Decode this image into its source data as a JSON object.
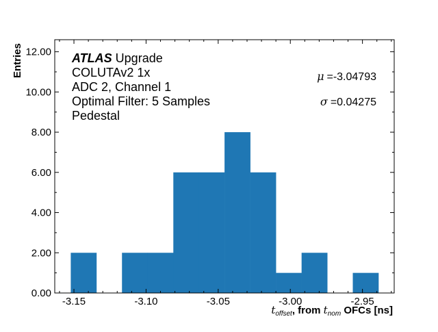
{
  "chart_data": {
    "type": "bar",
    "subtype": "histogram",
    "bin_edges": [
      -3.1522,
      -3.1344,
      -3.1167,
      -3.0989,
      -3.0811,
      -3.0633,
      -3.0456,
      -3.0278,
      -3.01,
      -2.9922,
      -2.9744,
      -2.9567,
      -2.9389
    ],
    "values": [
      2,
      0,
      2,
      2,
      6,
      6,
      8,
      6,
      1,
      2,
      0,
      1
    ],
    "xlim": [
      -3.1633,
      -2.928
    ],
    "ylim": [
      0,
      12.6
    ],
    "xticks": [
      -3.15,
      -3.1,
      -3.05,
      -3.0,
      -2.95
    ],
    "xtick_labels": [
      "-3.15",
      "-3.10",
      "-3.05",
      "-3.00",
      "-2.95"
    ],
    "yticks": [
      0,
      2,
      4,
      6,
      8,
      10,
      12
    ],
    "ytick_labels": [
      "0.00",
      "2.00",
      "4.00",
      "6.00",
      "8.00",
      "10.00",
      "12.00"
    ],
    "xlabel": {
      "t1": "t",
      "sub1": "offset",
      "mid": ", from ",
      "t2": "t",
      "sub2": "nom",
      "end": " OFCs [ns]"
    },
    "ylabel": "Entries",
    "bar_color": "#1f77b4",
    "grid": false,
    "annotations": {
      "atlas": "ATLAS",
      "upgrade": " Upgrade",
      "lines": [
        "COLUTAv2 1x",
        "ADC 2, Channel 1",
        "Optimal Filter: 5 Samples",
        "Pedestal"
      ],
      "mu_sym": "μ",
      "mu_val": "=-3.04793",
      "sigma_sym": "σ",
      "sigma_val": "=0.04275"
    }
  }
}
